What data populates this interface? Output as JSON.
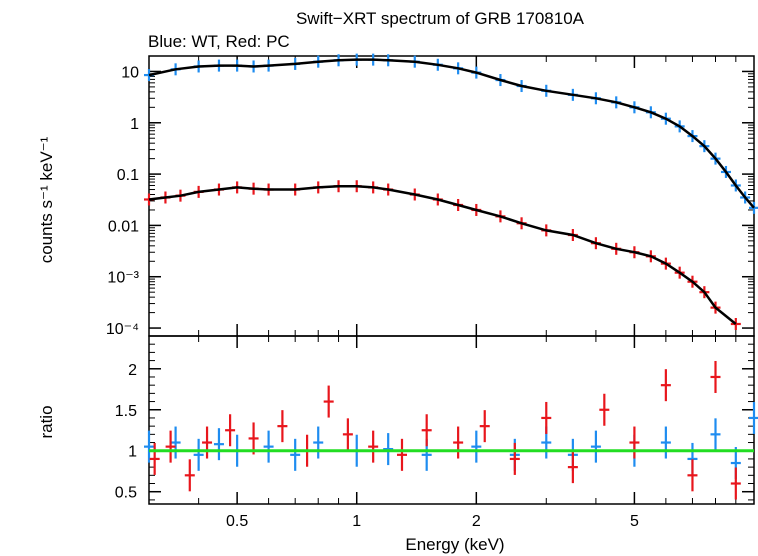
{
  "chart_data": [
    {
      "type": "scatter",
      "title": "Swift−XRT spectrum of GRB 170810A",
      "subtitle": "Blue: WT, Red: PC",
      "ylabel": "counts s⁻¹ keV⁻¹",
      "xlabel": "",
      "xscale": "log",
      "yscale": "log",
      "xlim": [
        0.3,
        10
      ],
      "ylim": [
        7e-05,
        20
      ],
      "yticks": [
        "10⁻⁴",
        "10⁻³",
        "0.01",
        "0.1",
        "1",
        "10"
      ],
      "ytick_values": [
        0.0001,
        0.001,
        0.01,
        0.1,
        1,
        10
      ],
      "series": [
        {
          "color": "#1e8cf0",
          "x": [
            0.3,
            0.35,
            0.4,
            0.45,
            0.5,
            0.55,
            0.6,
            0.7,
            0.8,
            0.9,
            1.0,
            1.1,
            1.2,
            1.4,
            1.6,
            1.8,
            2.0,
            2.3,
            2.6,
            3.0,
            3.5,
            4.0,
            4.5,
            5.0,
            5.5,
            6.0,
            6.5,
            7.0,
            7.5,
            8.0,
            8.5,
            9.0,
            9.5,
            10.0
          ],
          "y": [
            8.5,
            11.0,
            12.5,
            13.0,
            13.0,
            12.5,
            13.0,
            14.0,
            15.5,
            16.5,
            17.0,
            17.0,
            16.5,
            15.5,
            13.5,
            11.5,
            9.5,
            6.8,
            5.2,
            4.2,
            3.5,
            3.0,
            2.5,
            2.0,
            1.6,
            1.2,
            0.85,
            0.55,
            0.35,
            0.2,
            0.11,
            0.06,
            0.035,
            0.022
          ]
        },
        {
          "color": "#e8161c",
          "x": [
            0.3,
            0.33,
            0.36,
            0.4,
            0.45,
            0.5,
            0.55,
            0.6,
            0.7,
            0.8,
            0.9,
            1.0,
            1.1,
            1.2,
            1.4,
            1.6,
            1.8,
            2.0,
            2.3,
            2.6,
            3.0,
            3.5,
            4.0,
            4.5,
            5.0,
            5.5,
            6.0,
            6.5,
            7.0,
            7.5,
            8.0,
            9.0
          ],
          "y": [
            0.032,
            0.035,
            0.038,
            0.045,
            0.05,
            0.055,
            0.052,
            0.05,
            0.05,
            0.055,
            0.058,
            0.058,
            0.055,
            0.05,
            0.04,
            0.032,
            0.025,
            0.02,
            0.015,
            0.011,
            0.008,
            0.0065,
            0.0045,
            0.0035,
            0.003,
            0.0025,
            0.0018,
            0.0012,
            0.0008,
            0.0005,
            0.00025,
            0.00012
          ]
        }
      ]
    },
    {
      "type": "scatter",
      "xlabel": "Energy (keV)",
      "ylabel": "ratio",
      "xscale": "log",
      "xlim": [
        0.3,
        10
      ],
      "ylim": [
        0.35,
        2.4
      ],
      "xticks": [
        "0.5",
        "1",
        "2",
        "5"
      ],
      "xtick_values": [
        0.5,
        1,
        2,
        5
      ],
      "yticks": [
        "0.5",
        "1",
        "1.5",
        "2"
      ],
      "ytick_values": [
        0.5,
        1,
        1.5,
        2
      ],
      "reference_line": {
        "y": 1,
        "color": "#22dd22"
      },
      "series": [
        {
          "color": "#1e8cf0",
          "x": [
            0.3,
            0.35,
            0.4,
            0.45,
            0.5,
            0.6,
            0.7,
            0.8,
            1.0,
            1.2,
            1.5,
            2.0,
            2.5,
            3.0,
            3.5,
            4.0,
            5.0,
            6.0,
            7.0,
            8.0,
            9.0,
            10.0
          ],
          "y": [
            1.05,
            1.1,
            0.95,
            1.08,
            1.0,
            1.05,
            0.95,
            1.1,
            1.0,
            1.02,
            0.95,
            1.05,
            0.95,
            1.1,
            0.95,
            1.05,
            1.0,
            1.1,
            0.9,
            1.2,
            0.85,
            1.4
          ]
        },
        {
          "color": "#e8161c",
          "x": [
            0.31,
            0.34,
            0.38,
            0.42,
            0.48,
            0.55,
            0.65,
            0.75,
            0.85,
            0.95,
            1.1,
            1.3,
            1.5,
            1.8,
            2.1,
            2.5,
            3.0,
            3.5,
            4.2,
            5.0,
            6.0,
            7.0,
            8.0,
            9.0
          ],
          "y": [
            0.9,
            1.05,
            0.7,
            1.1,
            1.25,
            1.15,
            1.3,
            1.0,
            1.6,
            1.2,
            1.05,
            0.95,
            1.25,
            1.1,
            1.3,
            0.9,
            1.4,
            0.8,
            1.5,
            1.1,
            1.8,
            0.7,
            1.9,
            0.6
          ]
        }
      ]
    }
  ]
}
